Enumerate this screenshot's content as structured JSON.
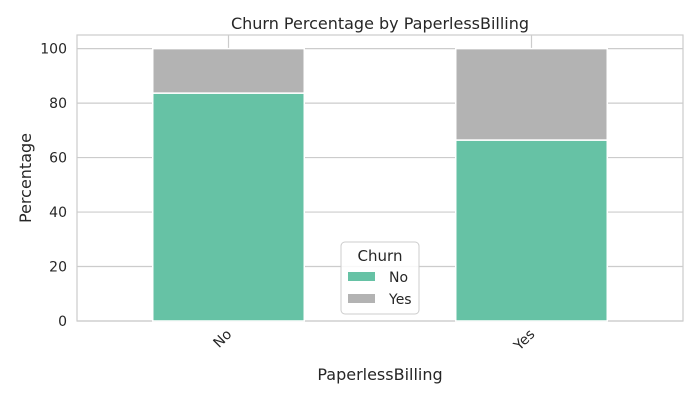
{
  "chart_data": {
    "type": "bar",
    "stacked": true,
    "title": "Churn Percentage by PaperlessBilling",
    "xlabel": "PaperlessBilling",
    "ylabel": "Percentage",
    "categories": [
      "No",
      "Yes"
    ],
    "series": [
      {
        "name": "No",
        "values": [
          83.67,
          66.43
        ],
        "color": "#66c2a5"
      },
      {
        "name": "Yes",
        "values": [
          16.33,
          33.57
        ],
        "color": "#b3b3b3"
      }
    ],
    "ylim": [
      0,
      105
    ],
    "yticks": [
      0,
      20,
      40,
      60,
      80,
      100
    ],
    "grid": true,
    "legend": {
      "title": "Churn",
      "placement": "lower-center"
    }
  }
}
